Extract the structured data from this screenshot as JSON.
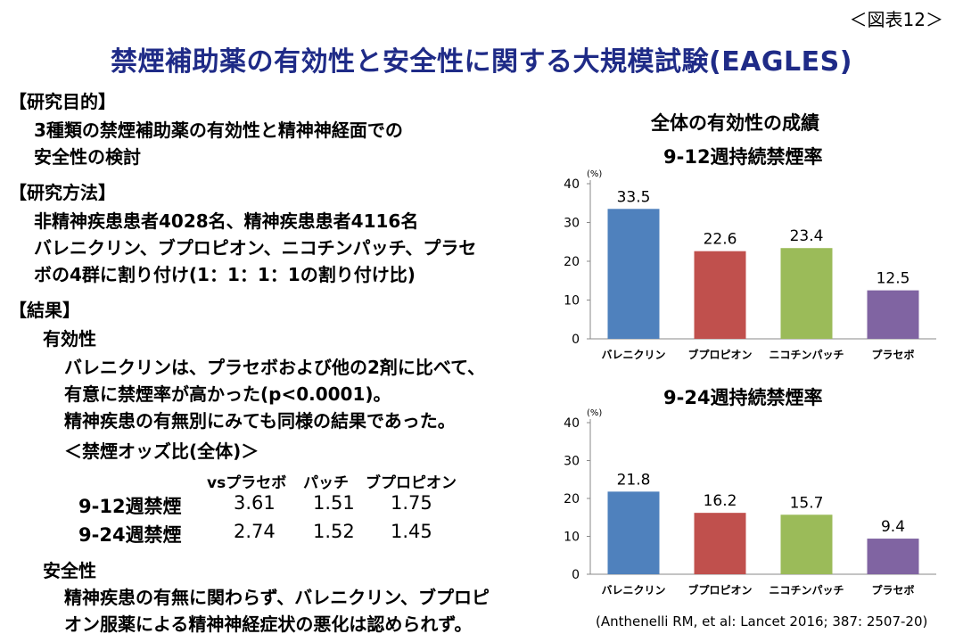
{
  "figure_no": "＜図表12＞",
  "title": "禁煙補助薬の有効性と安全性に関する大規模試験(EAGLES)",
  "sections": {
    "purpose_heading": "【研究目的】",
    "purpose_lines": [
      "3種類の禁煙補助薬の有効性と精神神経面での",
      "安全性の検討"
    ],
    "method_heading": "【研究方法】",
    "method_lines": [
      "非精神疾患患者4028名、精神疾患患者4116名",
      "バレニクリン、ブプロピオン、ニコチンパッチ、プラセ",
      "ボの4群に割り付け(1：1：1：1の割り付け比)"
    ],
    "result_heading": "【結果】",
    "efficacy_heading": "有効性",
    "efficacy_lines": [
      "バレニクリンは、プラセボおよび他の2剤に比べて、",
      "有意に禁煙率が高かった(p<0.0001)。",
      "精神疾患の有無別にみても同様の結果であった。"
    ],
    "odds_heading": "＜禁煙オッズ比(全体)＞",
    "odds_table": {
      "headers": [
        "vsプラセボ",
        "パッチ",
        "ブプロピオン"
      ],
      "rows": [
        {
          "label": "9-12週禁煙",
          "values": [
            "3.61",
            "1.51",
            "1.75"
          ]
        },
        {
          "label": "9-24週禁煙",
          "values": [
            "2.74",
            "1.52",
            "1.45"
          ]
        }
      ]
    },
    "safety_heading": "安全性",
    "safety_lines": [
      "精神疾患の有無に関わらず、バレニクリン、ブプロピ",
      "オン服薬による精神神経症状の悪化は認められず。"
    ]
  },
  "charts_heading": "全体の有効性の成績",
  "citation": "(Anthenelli RM, et al: Lancet 2016; 387: 2507-20)",
  "chart_data": [
    {
      "type": "bar",
      "title": "9-12週持続禁煙率",
      "ylabel": "(%)",
      "categories": [
        "バレニクリン",
        "ブプロピオン",
        "ニコチンパッチ",
        "プラセボ"
      ],
      "values": [
        33.5,
        22.6,
        23.4,
        12.5
      ],
      "colors": [
        "#4f81bd",
        "#c0504d",
        "#9bbb59",
        "#8064a2"
      ],
      "ylim": [
        0,
        40
      ],
      "yticks": [
        0,
        10,
        20,
        30,
        40
      ]
    },
    {
      "type": "bar",
      "title": "9-24週持続禁煙率",
      "ylabel": "(%)",
      "categories": [
        "バレニクリン",
        "ブプロピオン",
        "ニコチンパッチ",
        "プラセボ"
      ],
      "values": [
        21.8,
        16.2,
        15.7,
        9.4
      ],
      "colors": [
        "#4f81bd",
        "#c0504d",
        "#9bbb59",
        "#8064a2"
      ],
      "ylim": [
        0,
        40
      ],
      "yticks": [
        0,
        10,
        20,
        30,
        40
      ]
    }
  ]
}
